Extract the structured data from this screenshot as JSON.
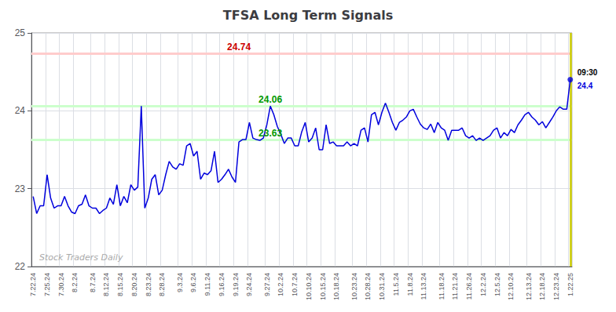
{
  "chart_data": {
    "type": "line",
    "title": "TFSA Long Term Signals",
    "color": "#0000dd",
    "grid": true,
    "ylim": [
      22,
      25
    ],
    "yticks": [
      22,
      23,
      24,
      25
    ],
    "categories": [
      "7.22.24",
      null,
      null,
      null,
      "7.25.24",
      null,
      null,
      null,
      "7.30.24",
      null,
      null,
      null,
      "8.2.24",
      null,
      null,
      null,
      null,
      "8.7.24",
      null,
      null,
      null,
      "8.12.24",
      null,
      null,
      null,
      "8.15.24",
      null,
      null,
      null,
      "8.20.24",
      null,
      null,
      null,
      "8.23.24",
      null,
      null,
      null,
      "8.28.24",
      null,
      null,
      null,
      null,
      "9.3.24",
      null,
      null,
      null,
      "9.6.24",
      null,
      null,
      null,
      "9.11.24",
      null,
      null,
      null,
      "9.16.24",
      null,
      null,
      null,
      "9.19.24",
      null,
      null,
      null,
      "9.24.24",
      null,
      null,
      null,
      null,
      "9.27.24",
      null,
      null,
      null,
      "10.2.24",
      null,
      null,
      null,
      "10.7.24",
      null,
      null,
      null,
      "10.10.24",
      null,
      null,
      null,
      "10.15.24",
      null,
      null,
      null,
      "10.18.24",
      null,
      null,
      null,
      null,
      "10.23.24",
      null,
      null,
      null,
      "10.28.24",
      null,
      null,
      null,
      "10.31.24",
      null,
      null,
      null,
      "11.5.24",
      null,
      null,
      null,
      "11.8.24",
      null,
      null,
      null,
      "11.13.24",
      null,
      null,
      null,
      null,
      "11.18.24",
      null,
      null,
      null,
      "11.21.24",
      null,
      null,
      null,
      "11.26.24",
      null,
      null,
      null,
      "12.2.24",
      null,
      null,
      null,
      "12.5.24",
      null,
      null,
      null,
      "12.10.24",
      null,
      null,
      null,
      null,
      "12.13.24",
      null,
      null,
      null,
      "12.18.24",
      null,
      null,
      null,
      "12.23.24",
      null,
      null,
      null,
      "1.22.25"
    ],
    "values": [
      22.9,
      22.68,
      22.78,
      22.78,
      23.18,
      22.88,
      22.75,
      22.78,
      22.78,
      22.9,
      22.78,
      22.7,
      22.68,
      22.78,
      22.8,
      22.92,
      22.78,
      22.75,
      22.75,
      22.68,
      22.72,
      22.75,
      22.88,
      22.8,
      23.05,
      22.78,
      22.9,
      22.82,
      23.05,
      22.98,
      23.02,
      24.06,
      22.75,
      22.88,
      23.12,
      23.18,
      22.92,
      22.98,
      23.18,
      23.35,
      23.28,
      23.25,
      23.32,
      23.3,
      23.55,
      23.58,
      23.42,
      23.48,
      23.12,
      23.2,
      23.18,
      23.23,
      23.48,
      23.08,
      23.12,
      23.18,
      23.25,
      23.15,
      23.08,
      23.6,
      23.63,
      23.63,
      23.85,
      23.65,
      23.63,
      23.62,
      23.65,
      23.82,
      24.06,
      23.95,
      23.8,
      23.7,
      23.58,
      23.65,
      23.65,
      23.55,
      23.55,
      23.73,
      23.85,
      23.6,
      23.65,
      23.78,
      23.5,
      23.5,
      23.82,
      23.58,
      23.6,
      23.55,
      23.55,
      23.55,
      23.6,
      23.55,
      23.58,
      23.55,
      23.75,
      23.78,
      23.6,
      23.95,
      23.98,
      23.82,
      23.98,
      24.1,
      23.98,
      23.85,
      23.75,
      23.85,
      23.88,
      23.92,
      24.0,
      24.02,
      23.92,
      23.83,
      23.78,
      23.76,
      23.83,
      23.72,
      23.85,
      23.78,
      23.75,
      23.62,
      23.75,
      23.75,
      23.75,
      23.78,
      23.68,
      23.65,
      23.68,
      23.62,
      23.65,
      23.62,
      23.65,
      23.68,
      23.75,
      23.78,
      23.65,
      23.72,
      23.68,
      23.76,
      23.72,
      23.82,
      23.88,
      23.95,
      23.98,
      23.92,
      23.88,
      23.82,
      23.86,
      23.78,
      23.85,
      23.92,
      24.0,
      24.05,
      24.02,
      24.02,
      24.4
    ],
    "hlines": [
      {
        "y": 24.74,
        "color": "#ffcccc",
        "label": "24.74",
        "label_color": "#cc0000"
      },
      {
        "y": 24.06,
        "color": "#ccffcc",
        "label": "24.06",
        "label_color": "#009900"
      },
      {
        "y": 23.63,
        "color": "#ccffcc",
        "label": "23.63",
        "label_color": "#009900"
      }
    ],
    "last_point": {
      "time": "09:30",
      "value": 24.4,
      "color": "#0000dd",
      "rule_color": "#cccc00"
    },
    "watermark": {
      "text": "Stock Traders Daily",
      "color": "#aaaaaa"
    }
  }
}
